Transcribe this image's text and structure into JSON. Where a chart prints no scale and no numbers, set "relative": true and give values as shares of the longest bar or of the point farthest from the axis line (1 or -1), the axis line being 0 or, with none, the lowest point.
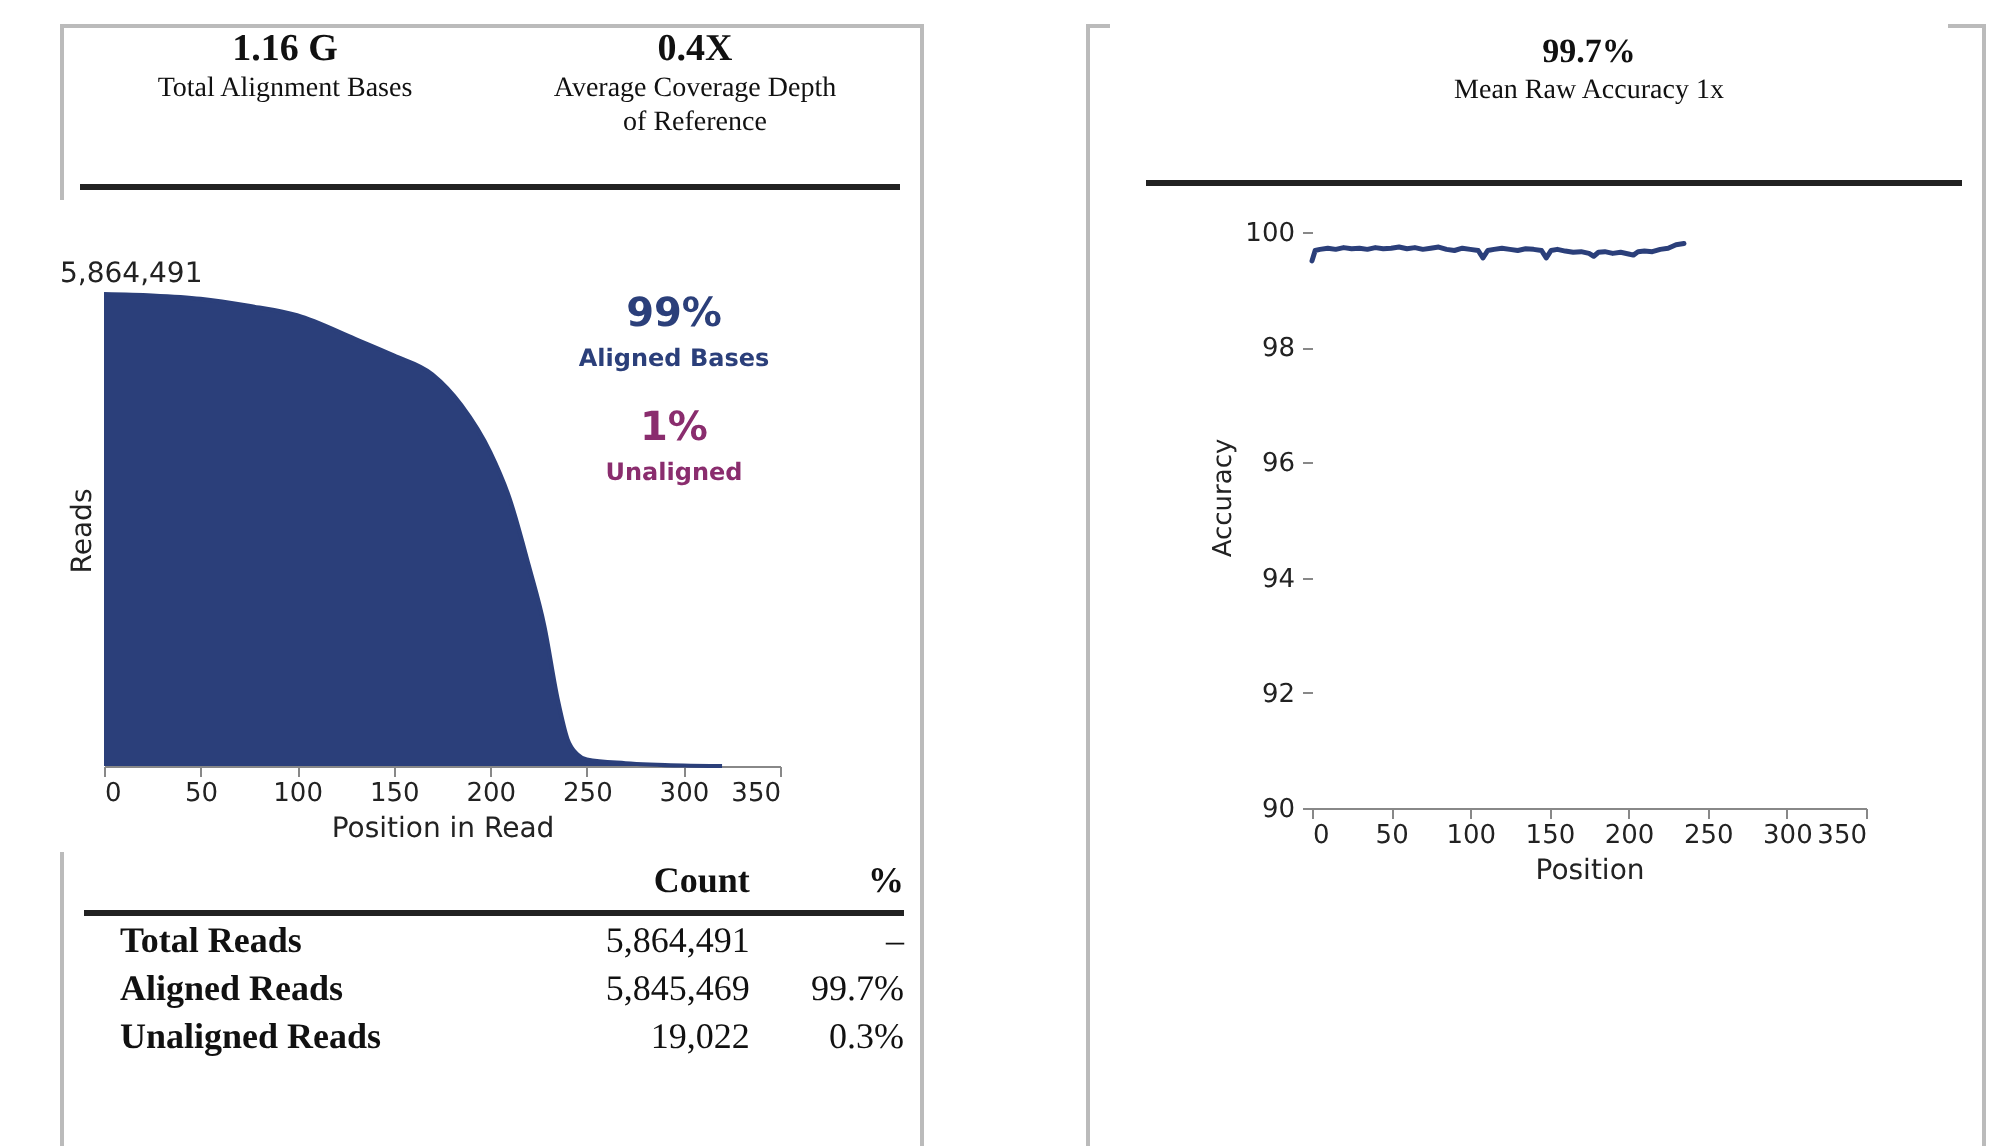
{
  "chart_data": [
    {
      "type": "other",
      "annotations": [
        "1.16 G",
        "Total Alignment Bases",
        "0.4X",
        "Average Coverage Depth of Reference"
      ]
    },
    {
      "type": "area",
      "relative": true,
      "xlabel": "Position in Read",
      "ylabel": "Reads",
      "xlim": [
        0,
        350
      ],
      "xticks": [
        0,
        50,
        100,
        150,
        200,
        250,
        300,
        350
      ],
      "grid": false,
      "x": [
        0,
        25,
        50,
        75,
        100,
        130,
        150,
        170,
        185,
        200,
        210,
        220,
        228,
        235,
        240,
        245,
        250,
        270,
        300,
        320
      ],
      "series": [
        {
          "color": "#2b3f7a",
          "values": [
            1,
            0.997,
            0.99,
            0.975,
            0.955,
            0.905,
            0.87,
            0.83,
            0.765,
            0.665,
            0.567,
            0.424,
            0.297,
            0.14,
            0.057,
            0.025,
            0.014,
            0.006,
            0.001,
            0
          ]
        }
      ],
      "annotations": [
        {
          "text": "5,864,491",
          "x": 0,
          "y": 1
        },
        "99%",
        "Aligned Bases",
        "1%",
        "Unaligned"
      ]
    },
    {
      "type": "other",
      "annotations": [
        "Count",
        "%",
        "Total Reads",
        "5,864,491",
        "–",
        "Aligned Reads",
        "5,845,469",
        "99.7%",
        "Unaligned Reads",
        "19,022",
        "0.3%"
      ]
    },
    {
      "type": "line",
      "title": "99.7%",
      "subtitle": "Mean Raw Accuracy 1x",
      "xlabel": "Position",
      "ylabel": "Accuracy",
      "xlim": [
        0,
        350
      ],
      "xticks": [
        0,
        50,
        100,
        150,
        200,
        250,
        300,
        350
      ],
      "ylim": [
        90,
        100.8
      ],
      "yticks": [
        90,
        92,
        94,
        96,
        98,
        100
      ],
      "grid": false,
      "marker": "none",
      "line_style": "solid",
      "x": [
        0,
        2,
        5,
        10,
        15,
        20,
        25,
        30,
        35,
        40,
        45,
        50,
        55,
        60,
        65,
        70,
        75,
        80,
        85,
        90,
        95,
        100,
        105,
        108,
        111,
        115,
        120,
        125,
        130,
        135,
        140,
        145,
        148,
        151,
        155,
        160,
        165,
        170,
        175,
        178,
        181,
        185,
        190,
        195,
        200,
        203,
        206,
        210,
        215,
        220,
        225,
        230,
        235
      ],
      "series": [
        {
          "color": "#2b3f7a",
          "values": [
            99.5,
            99.68,
            99.7,
            99.72,
            99.7,
            99.73,
            99.71,
            99.72,
            99.7,
            99.73,
            99.71,
            99.72,
            99.74,
            99.71,
            99.73,
            99.7,
            99.72,
            99.74,
            99.7,
            99.68,
            99.72,
            99.7,
            99.68,
            99.55,
            99.68,
            99.7,
            99.72,
            99.7,
            99.68,
            99.71,
            99.7,
            99.68,
            99.55,
            99.68,
            99.7,
            99.67,
            99.65,
            99.66,
            99.63,
            99.58,
            99.65,
            99.66,
            99.63,
            99.65,
            99.62,
            99.6,
            99.66,
            99.67,
            99.66,
            99.7,
            99.72,
            99.78,
            99.8
          ]
        }
      ]
    }
  ]
}
